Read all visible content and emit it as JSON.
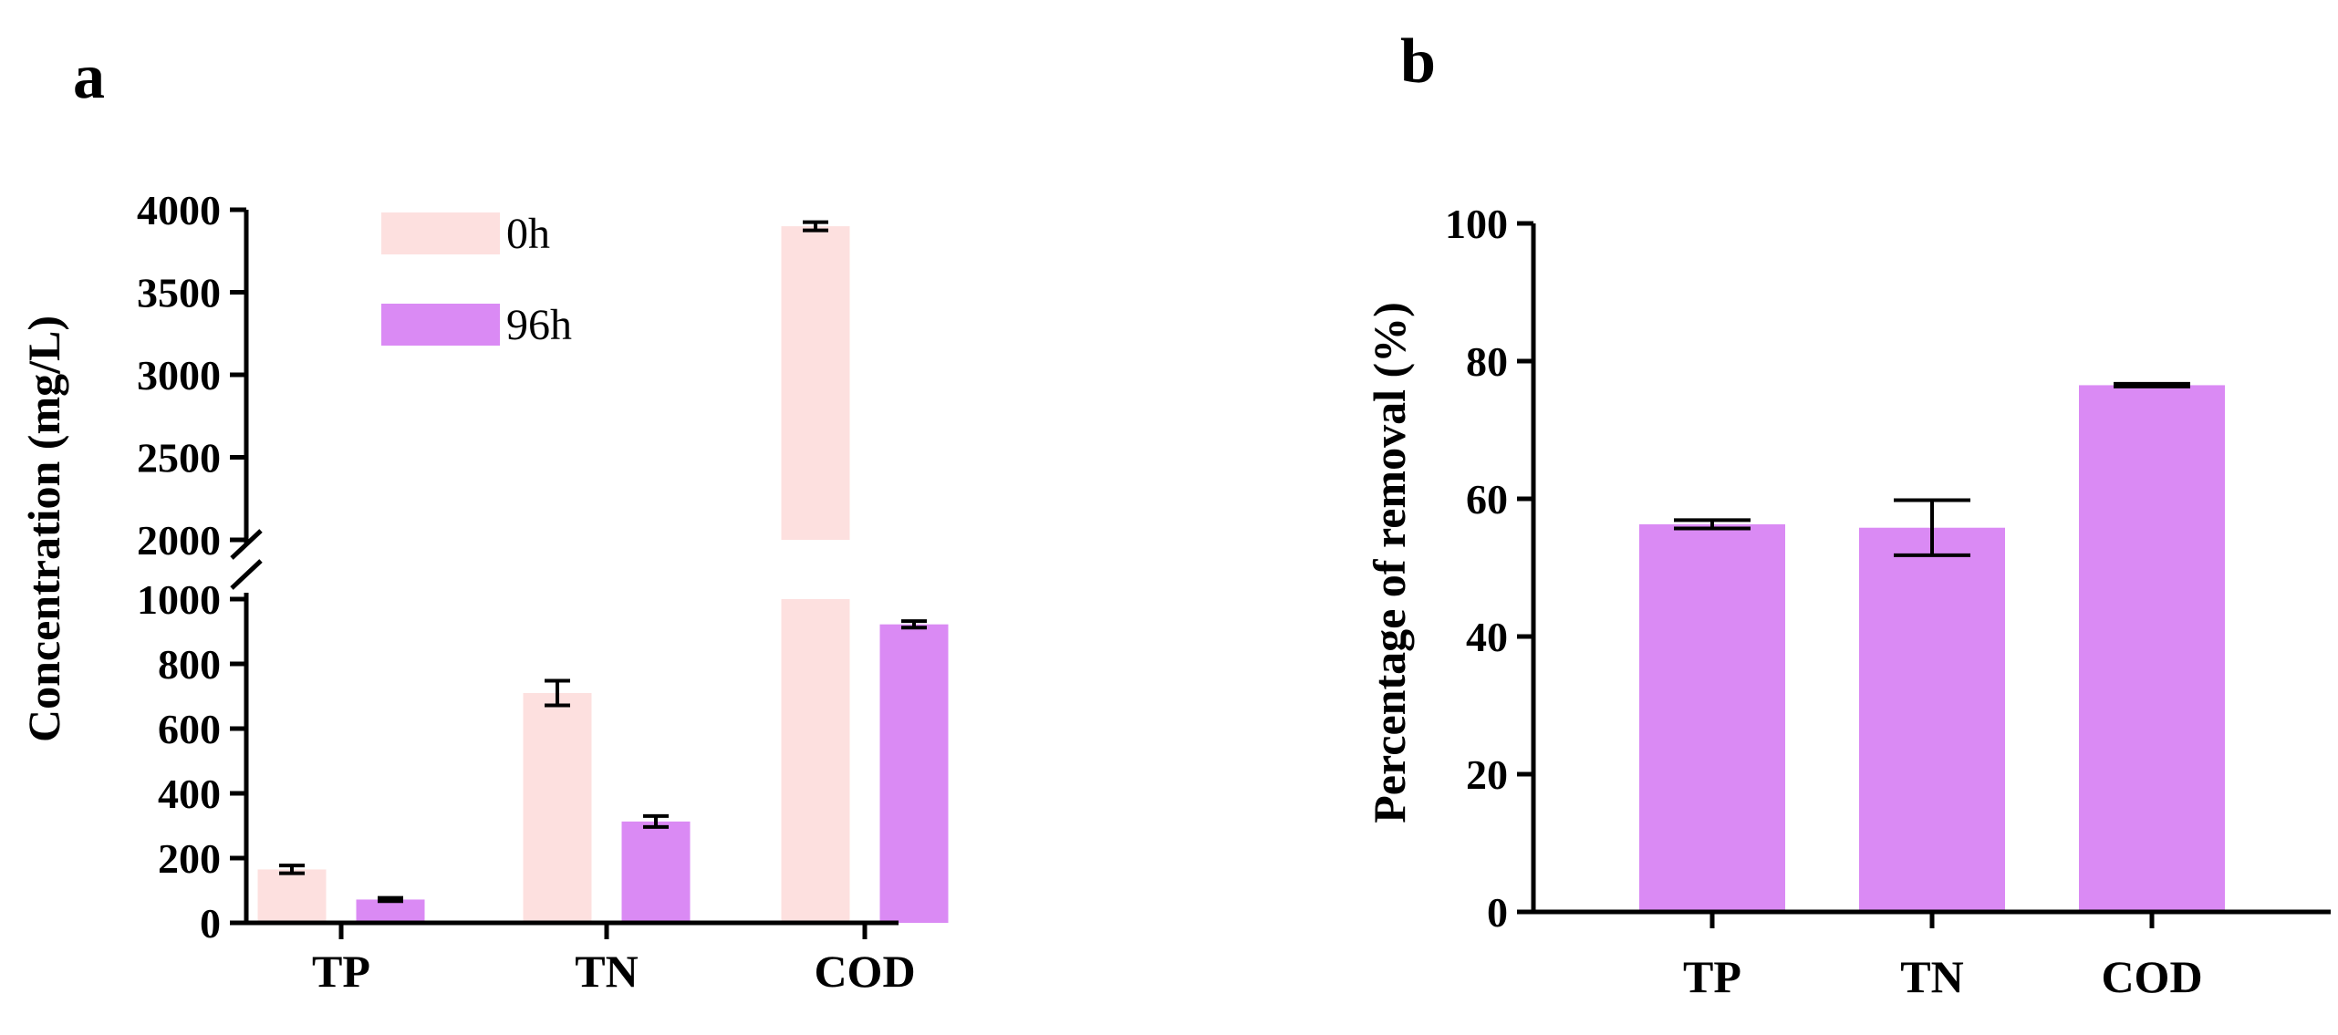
{
  "figure": {
    "panel_a_label": "a",
    "panel_b_label": "b"
  },
  "chart_data": [
    {
      "type": "bar",
      "panel": "a",
      "title": "",
      "xlabel": "",
      "ylabel": "Concentration (mg/L)",
      "categories": [
        "TP",
        "TN",
        "COD"
      ],
      "series": [
        {
          "name": "0h",
          "color": "#fde0df",
          "values": [
            165,
            710,
            3900
          ],
          "errors": [
            12,
            38,
            25
          ]
        },
        {
          "name": "96h",
          "color": "#da8af4",
          "values": [
            72,
            313,
            922
          ],
          "errors": [
            5,
            17,
            10
          ]
        }
      ],
      "axis_break": {
        "lower": [
          0,
          1000
        ],
        "upper": [
          2000,
          4000
        ]
      },
      "lower_ticks": [
        "0",
        "200",
        "400",
        "600",
        "800",
        "1000"
      ],
      "upper_ticks": [
        "2000",
        "2500",
        "3000",
        "3500",
        "4000"
      ],
      "legend": "top-left",
      "grid": false
    },
    {
      "type": "bar",
      "panel": "b",
      "title": "",
      "xlabel": "",
      "ylabel": "Percentage of removal (%)",
      "categories": [
        "TP",
        "TN",
        "COD"
      ],
      "values": [
        56.3,
        55.8,
        76.5
      ],
      "errors": [
        0.6,
        4.0,
        0.2
      ],
      "ylim": [
        0,
        100
      ],
      "ticks": [
        "0",
        "20",
        "40",
        "60",
        "80",
        "100"
      ],
      "color": "#da8af4",
      "grid": false
    }
  ]
}
